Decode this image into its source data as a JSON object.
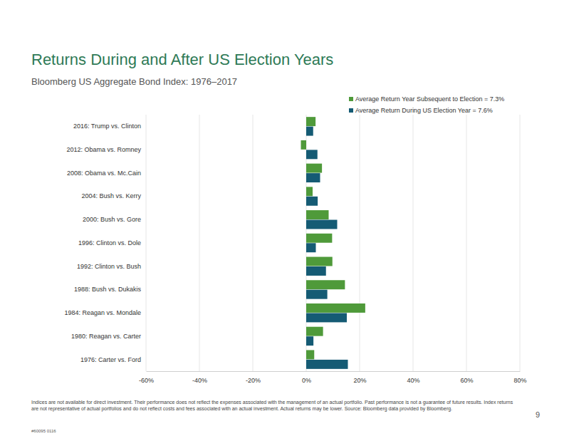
{
  "chart_data": {
    "type": "bar",
    "orientation": "horizontal",
    "title": "Returns During and After US Election Years",
    "subtitle": "Bloomberg US Aggregate Bond Index: 1976–2017",
    "categories": [
      "2016: Trump vs. Clinton",
      "2012: Obama vs. Romney",
      "2008: Obama vs. Mc.Cain",
      "2004: Bush vs. Kerry",
      "2000: Bush vs. Gore",
      "1996: Clinton vs. Dole",
      "1992: Clinton vs. Bush",
      "1988: Bush vs. Dukakis",
      "1984: Reagan vs. Mondale",
      "1980: Reagan vs. Carter",
      "1976: Carter vs. Ford"
    ],
    "series": [
      {
        "name": "Average Return Year Subsequent to Election = 7.3%",
        "color": "#4f9a3a",
        "values": [
          3.5,
          -2.0,
          5.9,
          2.4,
          8.4,
          9.7,
          9.8,
          14.5,
          22.1,
          6.3,
          3.0
        ]
      },
      {
        "name": "Average Return During US Election Year = 7.6%",
        "color": "#155b74",
        "values": [
          2.6,
          4.2,
          5.2,
          4.3,
          11.6,
          3.6,
          7.4,
          7.9,
          15.2,
          2.7,
          15.6
        ]
      }
    ],
    "xlim": [
      -60,
      80
    ],
    "xticks": [
      {
        "value": -60,
        "label": "-60%"
      },
      {
        "value": -40,
        "label": "-40%"
      },
      {
        "value": -20,
        "label": "-20%"
      },
      {
        "value": 0,
        "label": "0%"
      },
      {
        "value": 20,
        "label": "20%"
      },
      {
        "value": 40,
        "label": "40%"
      },
      {
        "value": 60,
        "label": "60%"
      },
      {
        "value": 80,
        "label": "80%"
      }
    ],
    "grid": true,
    "legend": "upper right",
    "annotations": [
      "Indices are not available for direct investment. Their performance does not reflect the expenses associated with the management of an actual portfolio. Past performance is not a guarantee of future results. Index returns are not representative of actual portfolios and do not reflect costs and fees associated with an actual investment. Actual returns may be lower. Source: Bloomberg data provided by Bloomberg.",
      "9",
      "#60095 0116"
    ]
  }
}
